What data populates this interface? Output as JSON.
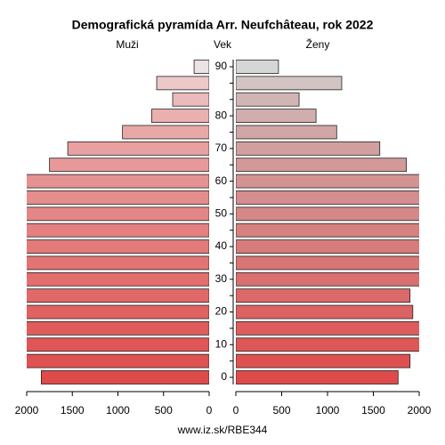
{
  "chart_data": {
    "type": "pyramid",
    "title": "Demografická pyramída Arr. Neufchâteau, rok 2022",
    "axis_label": "Vek",
    "footer": "www.iz.sk/RBE344",
    "categories": [
      "0",
      null,
      "10",
      null,
      "20",
      null,
      "30",
      null,
      "40",
      null,
      "50",
      null,
      "60",
      null,
      "70",
      null,
      "80",
      null,
      null,
      "90"
    ],
    "series": [
      {
        "name": "Muži",
        "side": "left",
        "values": [
          1840,
          2100,
          2100,
          2100,
          2100,
          2100,
          2100,
          2100,
          2100,
          2100,
          2100,
          2100,
          2100,
          1750,
          1550,
          950,
          630,
          400,
          575,
          165
        ],
        "colors": [
          "#df4b4b",
          "#e05151",
          "#e05656",
          "#e05c5c",
          "#e16262",
          "#e16868",
          "#e26e6e",
          "#e27474",
          "#e37a7a",
          "#e48080",
          "#e48686",
          "#e58c8c",
          "#e69292",
          "#e79999",
          "#e8a0a0",
          "#e9a8a8",
          "#eab0b0",
          "#ebbaba",
          "#ecc8c8",
          "#ebe2e2"
        ]
      },
      {
        "name": "Ženy",
        "side": "right",
        "values": [
          1770,
          1900,
          2100,
          2100,
          1930,
          1900,
          2100,
          2100,
          2100,
          2100,
          2100,
          2100,
          2100,
          1860,
          1570,
          1100,
          875,
          690,
          1155,
          465
        ],
        "colors": [
          "#df4b4b",
          "#df5151",
          "#de5757",
          "#dd5d5d",
          "#dc6363",
          "#db6969",
          "#da6f6f",
          "#d97575",
          "#d87b7b",
          "#d78181",
          "#d68787",
          "#d58d8d",
          "#d49393",
          "#d39999",
          "#d29f9f",
          "#d1a6a6",
          "#d1adad",
          "#d1b5b5",
          "#d3c4c4",
          "#d6d6d6"
        ]
      }
    ],
    "xlim": [
      0,
      2000
    ],
    "xticks": [
      0,
      500,
      1000,
      1500,
      2000
    ]
  }
}
